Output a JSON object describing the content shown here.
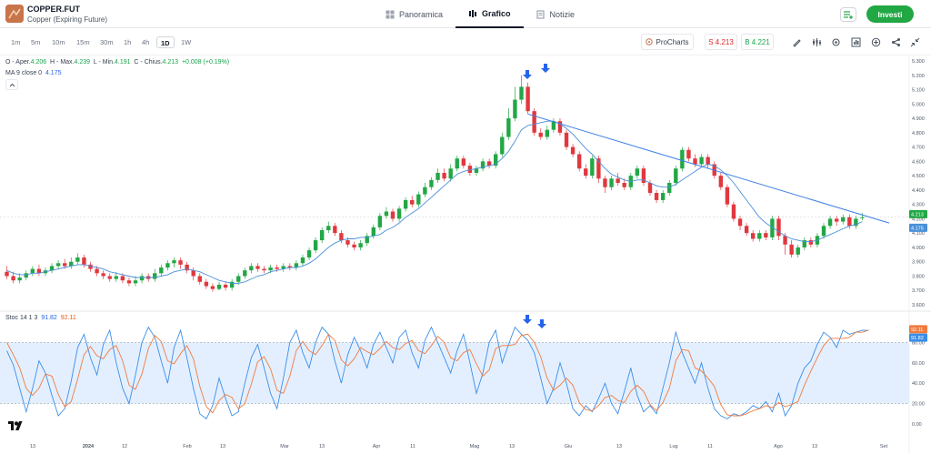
{
  "instrument": {
    "symbol": "COPPER.FUT",
    "name": "Copper (Expiring Future)"
  },
  "tabs": [
    {
      "label": "Panoramica",
      "icon": "overview-icon",
      "active": false
    },
    {
      "label": "Grafico",
      "icon": "chart-icon",
      "active": true
    },
    {
      "label": "Notizie",
      "icon": "news-icon",
      "active": false
    }
  ],
  "invest_label": "Investi",
  "timeframes": [
    {
      "label": "1m",
      "active": false
    },
    {
      "label": "5m",
      "active": false
    },
    {
      "label": "10m",
      "active": false
    },
    {
      "label": "15m",
      "active": false
    },
    {
      "label": "30m",
      "active": false
    },
    {
      "label": "1h",
      "active": false
    },
    {
      "label": "4h",
      "active": false
    },
    {
      "label": "1D",
      "active": true
    },
    {
      "label": "1W",
      "active": false
    }
  ],
  "prochart_label": "ProCharts",
  "sell": {
    "label": "S",
    "value": "4.213"
  },
  "buy": {
    "label": "B",
    "value": "4.221"
  },
  "ohlc": {
    "open_label": "O - Aper.",
    "open": "4.206",
    "high_label": "H - Max.",
    "high": "4.239",
    "low_label": "L - Min.",
    "low": "4.191",
    "close_label": "C - Chius.",
    "close": "4.213",
    "change": "+0.008 (+0.19%)"
  },
  "ma": {
    "label": "MA 9 close 0",
    "value": "4.175"
  },
  "stoch": {
    "label": "Stoc 14 1 3",
    "k": "91.82",
    "d": "92.11"
  },
  "colors": {
    "up": "#22a745",
    "down": "#e0383e",
    "ma": "#4a90d9",
    "trendline": "#3f7fe6",
    "stoch_k": "#3b8ee8",
    "stoch_d": "#f07b3f",
    "band": "#e3efff",
    "arrow": "#2563eb"
  },
  "price_axis": [
    "5.300",
    "5.200",
    "5.100",
    "5.000",
    "4.900",
    "4.800",
    "4.700",
    "4.600",
    "4.500",
    "4.400",
    "4.300",
    "4.200",
    "4.100",
    "4.000",
    "3.900",
    "3.800",
    "3.700",
    "3.600"
  ],
  "price_badges": {
    "top": "4.213",
    "bottom": "4.175"
  },
  "stoch_axis": [
    "80.00",
    "60.00",
    "40.00",
    "20.00",
    "0.00"
  ],
  "stoch_badges": {
    "top": "92.11",
    "bottom": "91.82"
  },
  "time_axis": [
    "13",
    "2024",
    "12",
    "Feb",
    "13",
    "Mar",
    "13",
    "Apr",
    "11",
    "Mag",
    "13",
    "Giu",
    "13",
    "Lug",
    "11",
    "Ago",
    "13",
    "Set"
  ],
  "chart_data": {
    "type": "candlestick",
    "price_range": [
      3.6,
      5.3
    ],
    "stoch_range": [
      0,
      100
    ],
    "stoch_band": [
      20,
      80
    ],
    "candles": [
      [
        3.83,
        3.8,
        3.87,
        3.78
      ],
      [
        3.8,
        3.77,
        3.83,
        3.75
      ],
      [
        3.77,
        3.79,
        3.82,
        3.75
      ],
      [
        3.79,
        3.82,
        3.84,
        3.77
      ],
      [
        3.82,
        3.85,
        3.87,
        3.8
      ],
      [
        3.85,
        3.82,
        3.88,
        3.8
      ],
      [
        3.82,
        3.84,
        3.86,
        3.8
      ],
      [
        3.84,
        3.87,
        3.89,
        3.82
      ],
      [
        3.87,
        3.89,
        3.91,
        3.85
      ],
      [
        3.89,
        3.87,
        3.92,
        3.85
      ],
      [
        3.87,
        3.9,
        3.93,
        3.85
      ],
      [
        3.9,
        3.93,
        3.96,
        3.88
      ],
      [
        3.93,
        3.88,
        3.95,
        3.86
      ],
      [
        3.88,
        3.85,
        3.9,
        3.83
      ],
      [
        3.85,
        3.82,
        3.87,
        3.8
      ],
      [
        3.82,
        3.8,
        3.84,
        3.78
      ],
      [
        3.8,
        3.78,
        3.82,
        3.76
      ],
      [
        3.78,
        3.8,
        3.83,
        3.76
      ],
      [
        3.8,
        3.77,
        3.82,
        3.75
      ],
      [
        3.77,
        3.75,
        3.79,
        3.73
      ],
      [
        3.75,
        3.77,
        3.8,
        3.73
      ],
      [
        3.77,
        3.8,
        3.82,
        3.75
      ],
      [
        3.8,
        3.78,
        3.82,
        3.76
      ],
      [
        3.78,
        3.82,
        3.85,
        3.76
      ],
      [
        3.82,
        3.86,
        3.88,
        3.8
      ],
      [
        3.86,
        3.89,
        3.91,
        3.84
      ],
      [
        3.89,
        3.91,
        3.93,
        3.86
      ],
      [
        3.91,
        3.88,
        3.93,
        3.85
      ],
      [
        3.88,
        3.84,
        3.9,
        3.82
      ],
      [
        3.84,
        3.8,
        3.86,
        3.77
      ],
      [
        3.8,
        3.76,
        3.82,
        3.74
      ],
      [
        3.76,
        3.73,
        3.78,
        3.71
      ],
      [
        3.73,
        3.71,
        3.75,
        3.69
      ],
      [
        3.71,
        3.74,
        3.76,
        3.7
      ],
      [
        3.74,
        3.72,
        3.76,
        3.7
      ],
      [
        3.72,
        3.76,
        3.78,
        3.7
      ],
      [
        3.76,
        3.8,
        3.82,
        3.74
      ],
      [
        3.8,
        3.84,
        3.86,
        3.78
      ],
      [
        3.84,
        3.87,
        3.89,
        3.82
      ],
      [
        3.87,
        3.85,
        3.89,
        3.83
      ],
      [
        3.85,
        3.84,
        3.87,
        3.82
      ],
      [
        3.84,
        3.86,
        3.88,
        3.82
      ],
      [
        3.86,
        3.85,
        3.88,
        3.83
      ],
      [
        3.85,
        3.87,
        3.89,
        3.83
      ],
      [
        3.87,
        3.86,
        3.89,
        3.84
      ],
      [
        3.86,
        3.89,
        3.91,
        3.84
      ],
      [
        3.89,
        3.93,
        3.95,
        3.87
      ],
      [
        3.93,
        3.98,
        4.0,
        3.91
      ],
      [
        3.98,
        4.05,
        4.07,
        3.96
      ],
      [
        4.05,
        4.12,
        4.14,
        4.03
      ],
      [
        4.12,
        4.15,
        4.18,
        4.1
      ],
      [
        4.15,
        4.1,
        4.17,
        4.08
      ],
      [
        4.1,
        4.05,
        4.12,
        4.03
      ],
      [
        4.05,
        4.02,
        4.07,
        4.0
      ],
      [
        4.02,
        4.0,
        4.04,
        3.98
      ],
      [
        4.0,
        4.03,
        4.05,
        3.98
      ],
      [
        4.03,
        4.08,
        4.1,
        4.01
      ],
      [
        4.08,
        4.14,
        4.16,
        4.06
      ],
      [
        4.14,
        4.22,
        4.24,
        4.12
      ],
      [
        4.22,
        4.25,
        4.28,
        4.2
      ],
      [
        4.25,
        4.2,
        4.27,
        4.18
      ],
      [
        4.2,
        4.27,
        4.29,
        4.18
      ],
      [
        4.27,
        4.33,
        4.35,
        4.25
      ],
      [
        4.33,
        4.3,
        4.36,
        4.28
      ],
      [
        4.3,
        4.37,
        4.39,
        4.28
      ],
      [
        4.37,
        4.42,
        4.45,
        4.35
      ],
      [
        4.42,
        4.47,
        4.49,
        4.4
      ],
      [
        4.47,
        4.52,
        4.55,
        4.45
      ],
      [
        4.52,
        4.48,
        4.55,
        4.46
      ],
      [
        4.48,
        4.55,
        4.58,
        4.46
      ],
      [
        4.55,
        4.62,
        4.64,
        4.53
      ],
      [
        4.62,
        4.57,
        4.64,
        4.55
      ],
      [
        4.57,
        4.52,
        4.59,
        4.5
      ],
      [
        4.52,
        4.55,
        4.57,
        4.5
      ],
      [
        4.55,
        4.6,
        4.62,
        4.53
      ],
      [
        4.6,
        4.57,
        4.62,
        4.55
      ],
      [
        4.57,
        4.65,
        4.67,
        4.55
      ],
      [
        4.65,
        4.77,
        4.8,
        4.63
      ],
      [
        4.77,
        4.9,
        4.97,
        4.75
      ],
      [
        4.9,
        5.03,
        5.12,
        4.88
      ],
      [
        5.03,
        5.12,
        5.2,
        5.0
      ],
      [
        5.12,
        4.95,
        5.15,
        4.93
      ],
      [
        4.95,
        4.8,
        4.97,
        4.78
      ],
      [
        4.8,
        4.77,
        4.83,
        4.75
      ],
      [
        4.77,
        4.82,
        4.85,
        4.75
      ],
      [
        4.82,
        4.88,
        4.9,
        4.8
      ],
      [
        4.88,
        4.8,
        4.9,
        4.78
      ],
      [
        4.8,
        4.7,
        4.82,
        4.68
      ],
      [
        4.7,
        4.65,
        4.72,
        4.63
      ],
      [
        4.65,
        4.55,
        4.67,
        4.53
      ],
      [
        4.55,
        4.5,
        4.58,
        4.48
      ],
      [
        4.5,
        4.62,
        4.64,
        4.48
      ],
      [
        4.62,
        4.48,
        4.64,
        4.45
      ],
      [
        4.48,
        4.42,
        4.5,
        4.38
      ],
      [
        4.42,
        4.48,
        4.5,
        4.4
      ],
      [
        4.48,
        4.45,
        4.52,
        4.43
      ],
      [
        4.45,
        4.42,
        4.48,
        4.4
      ],
      [
        4.42,
        4.5,
        4.52,
        4.4
      ],
      [
        4.5,
        4.55,
        4.57,
        4.48
      ],
      [
        4.55,
        4.45,
        4.57,
        4.43
      ],
      [
        4.45,
        4.38,
        4.47,
        4.36
      ],
      [
        4.38,
        4.33,
        4.4,
        4.31
      ],
      [
        4.33,
        4.38,
        4.4,
        4.31
      ],
      [
        4.38,
        4.45,
        4.47,
        4.36
      ],
      [
        4.45,
        4.55,
        4.57,
        4.43
      ],
      [
        4.55,
        4.68,
        4.7,
        4.53
      ],
      [
        4.68,
        4.62,
        4.7,
        4.6
      ],
      [
        4.62,
        4.58,
        4.65,
        4.56
      ],
      [
        4.58,
        4.63,
        4.65,
        4.56
      ],
      [
        4.63,
        4.58,
        4.65,
        4.55
      ],
      [
        4.58,
        4.5,
        4.6,
        4.48
      ],
      [
        4.5,
        4.42,
        4.52,
        4.4
      ],
      [
        4.42,
        4.3,
        4.44,
        4.28
      ],
      [
        4.3,
        4.2,
        4.32,
        4.18
      ],
      [
        4.2,
        4.15,
        4.22,
        4.12
      ],
      [
        4.15,
        4.1,
        4.17,
        4.08
      ],
      [
        4.1,
        4.06,
        4.12,
        4.04
      ],
      [
        4.06,
        4.1,
        4.12,
        4.04
      ],
      [
        4.1,
        4.07,
        4.12,
        4.05
      ],
      [
        4.07,
        4.2,
        4.22,
        4.05
      ],
      [
        4.2,
        4.08,
        4.22,
        4.05
      ],
      [
        4.08,
        4.02,
        4.1,
        3.95
      ],
      [
        4.02,
        3.95,
        4.05,
        3.93
      ],
      [
        3.95,
        4.0,
        4.02,
        3.93
      ],
      [
        4.0,
        4.05,
        4.07,
        3.98
      ],
      [
        4.05,
        4.02,
        4.07,
        4.0
      ],
      [
        4.02,
        4.08,
        4.1,
        4.0
      ],
      [
        4.08,
        4.15,
        4.17,
        4.06
      ],
      [
        4.15,
        4.2,
        4.22,
        4.13
      ],
      [
        4.2,
        4.18,
        4.22,
        4.15
      ],
      [
        4.18,
        4.21,
        4.23,
        4.16
      ],
      [
        4.21,
        4.15,
        4.23,
        4.13
      ],
      [
        4.15,
        4.2,
        4.22,
        4.13
      ],
      [
        4.21,
        4.21,
        4.24,
        4.19
      ]
    ],
    "ma9": [
      3.84,
      3.82,
      3.81,
      3.81,
      3.82,
      3.82,
      3.83,
      3.84,
      3.85,
      3.86,
      3.87,
      3.88,
      3.88,
      3.87,
      3.86,
      3.85,
      3.83,
      3.82,
      3.81,
      3.8,
      3.79,
      3.79,
      3.79,
      3.79,
      3.8,
      3.81,
      3.83,
      3.84,
      3.85,
      3.84,
      3.83,
      3.81,
      3.79,
      3.77,
      3.76,
      3.75,
      3.75,
      3.76,
      3.78,
      3.8,
      3.81,
      3.83,
      3.84,
      3.85,
      3.86,
      3.86,
      3.87,
      3.89,
      3.92,
      3.96,
      4.0,
      4.03,
      4.05,
      4.06,
      4.06,
      4.07,
      4.07,
      4.08,
      4.09,
      4.12,
      4.14,
      4.17,
      4.21,
      4.24,
      4.27,
      4.31,
      4.35,
      4.39,
      4.43,
      4.47,
      4.51,
      4.53,
      4.54,
      4.55,
      4.56,
      4.57,
      4.58,
      4.62,
      4.67,
      4.74,
      4.82,
      4.85,
      4.86,
      4.87,
      4.88,
      4.88,
      4.86,
      4.83,
      4.79,
      4.74,
      4.69,
      4.65,
      4.6,
      4.55,
      4.51,
      4.49,
      4.47,
      4.46,
      4.47,
      4.47,
      4.45,
      4.43,
      4.42,
      4.42,
      4.44,
      4.47,
      4.5,
      4.53,
      4.56,
      4.58,
      4.57,
      4.54,
      4.5,
      4.45,
      4.39,
      4.33,
      4.27,
      4.21,
      4.17,
      4.14,
      4.11,
      4.08,
      4.06,
      4.05,
      4.04,
      4.04,
      4.05,
      4.07,
      4.09,
      4.11,
      4.13,
      4.15,
      4.16,
      4.18
    ],
    "stoch_k": [
      72,
      58,
      35,
      12,
      35,
      62,
      50,
      28,
      8,
      15,
      42,
      75,
      88,
      65,
      48,
      78,
      92,
      60,
      35,
      20,
      48,
      80,
      95,
      85,
      62,
      40,
      75,
      92,
      65,
      35,
      10,
      5,
      18,
      45,
      25,
      8,
      12,
      40,
      65,
      78,
      55,
      30,
      15,
      45,
      80,
      92,
      70,
      55,
      80,
      95,
      88,
      62,
      40,
      68,
      85,
      72,
      55,
      78,
      90,
      75,
      60,
      85,
      92,
      70,
      55,
      82,
      95,
      80,
      65,
      50,
      72,
      88,
      60,
      30,
      50,
      80,
      92,
      60,
      78,
      95,
      88,
      82,
      70,
      45,
      20,
      35,
      60,
      40,
      15,
      8,
      18,
      12,
      25,
      40,
      20,
      10,
      32,
      55,
      28,
      12,
      18,
      10,
      35,
      60,
      90,
      70,
      55,
      40,
      60,
      35,
      15,
      8,
      5,
      10,
      8,
      12,
      18,
      15,
      22,
      12,
      30,
      8,
      18,
      40,
      55,
      62,
      78,
      90,
      85,
      75,
      92,
      88,
      90,
      92,
      91.82
    ],
    "stoch_d": [
      80,
      68,
      55,
      35,
      28,
      35,
      49,
      47,
      29,
      17,
      22,
      44,
      68,
      76,
      67,
      64,
      73,
      77,
      62,
      38,
      34,
      49,
      74,
      87,
      81,
      62,
      59,
      69,
      77,
      64,
      37,
      17,
      11,
      23,
      29,
      26,
      15,
      20,
      39,
      61,
      66,
      54,
      33,
      30,
      47,
      72,
      81,
      72,
      68,
      77,
      88,
      82,
      63,
      57,
      64,
      75,
      71,
      68,
      74,
      81,
      75,
      73,
      79,
      82,
      72,
      69,
      77,
      86,
      80,
      65,
      62,
      70,
      73,
      59,
      47,
      53,
      74,
      77,
      77,
      78,
      87,
      88,
      80,
      66,
      45,
      33,
      38,
      45,
      38,
      21,
      14,
      13,
      18,
      26,
      28,
      23,
      21,
      32,
      38,
      32,
      19,
      13,
      21,
      35,
      62,
      73,
      72,
      55,
      52,
      45,
      37,
      19,
      9,
      8,
      8,
      10,
      13,
      15,
      18,
      16,
      21,
      17,
      19,
      22,
      38,
      52,
      65,
      77,
      84,
      84,
      84,
      85,
      90,
      90,
      92.11
    ]
  }
}
